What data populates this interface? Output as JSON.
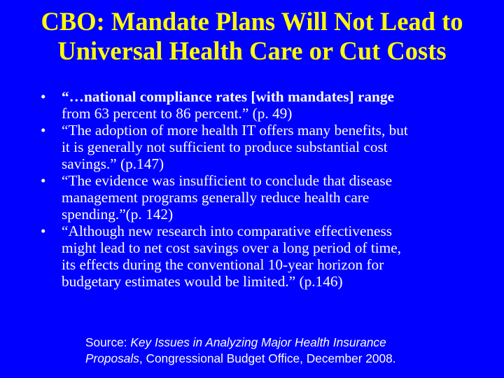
{
  "title": {
    "line1": "CBO: Mandate Plans Will Not Lead to",
    "line2": "Universal Health Care or Cut Costs"
  },
  "bullets": [
    {
      "glyph": "•",
      "lines": [
        "“…national compliance rates [with mandates] range",
        "from 63 percent to 86 percent.” (p. 49)"
      ],
      "bold_line1": true
    },
    {
      "glyph": "•",
      "lines": [
        "“The adoption of more health IT offers many benefits, but",
        "it is generally not sufficient to produce substantial cost",
        "savings.” (p.147)"
      ]
    },
    {
      "glyph": "•",
      "lines": [
        "“The evidence was insufficient to conclude that disease",
        "management programs generally reduce health care",
        "spending.”(p. 142)"
      ]
    },
    {
      "glyph": "•",
      "lines": [
        "“Although new research into comparative effectiveness",
        "might lead to net cost savings over a long period of time,",
        "its effects during the conventional 10-year horizon for",
        "budgetary estimates would be limited.” (p.146)"
      ]
    }
  ],
  "source": {
    "prefix": "Source: ",
    "italic1": "Key Issues in Analyzing Major Health Insurance",
    "italic2": "Proposals",
    "suffix": ", Congressional Budget Office, December 2008."
  },
  "colors": {
    "background": "#0000ff",
    "title": "#ffff00",
    "text": "#ffffff"
  }
}
